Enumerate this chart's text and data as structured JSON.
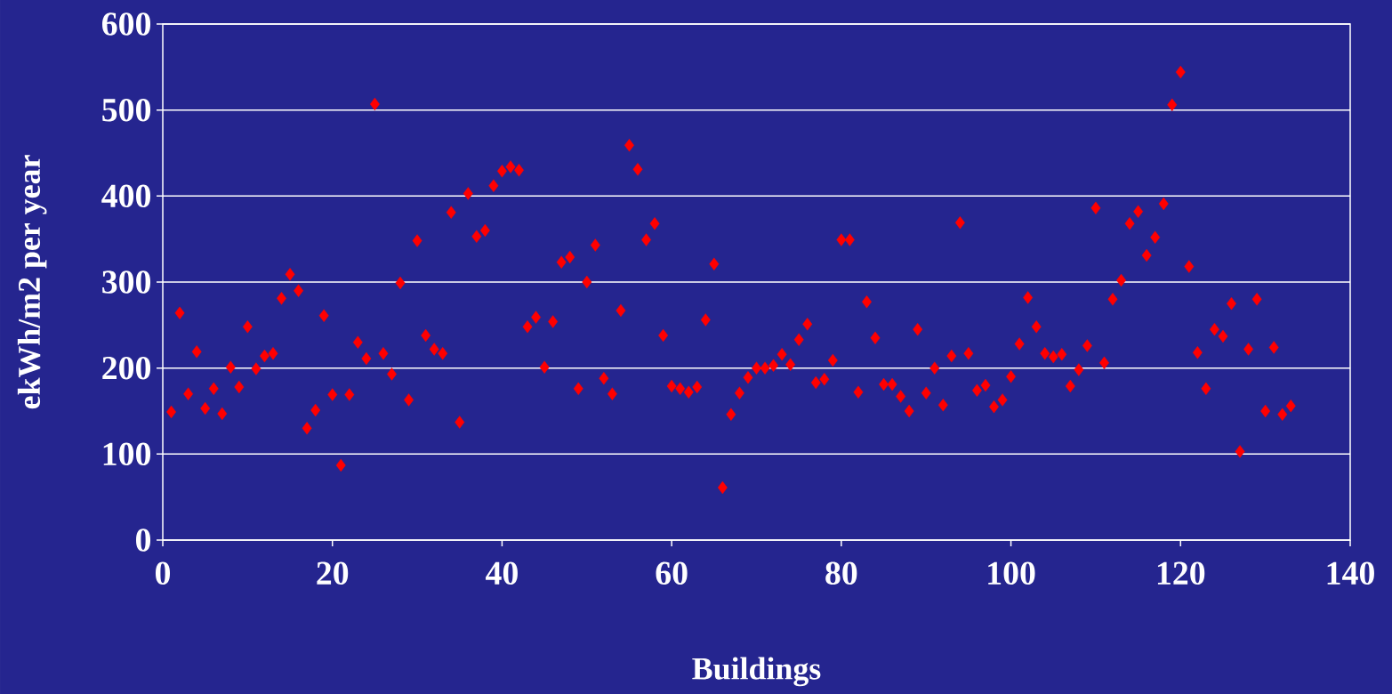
{
  "chart_data": {
    "type": "scatter",
    "xlabel": "Buildings",
    "ylabel": "ekWh/m2 per year",
    "x": [
      1,
      2,
      3,
      4,
      5,
      6,
      7,
      8,
      9,
      10,
      11,
      12,
      13,
      14,
      15,
      16,
      17,
      18,
      19,
      20,
      21,
      22,
      23,
      24,
      25,
      26,
      27,
      28,
      29,
      30,
      31,
      32,
      33,
      34,
      35,
      36,
      37,
      38,
      39,
      40,
      41,
      42,
      43,
      44,
      45,
      46,
      47,
      48,
      49,
      50,
      51,
      52,
      53,
      54,
      55,
      56,
      57,
      58,
      59,
      60,
      61,
      62,
      63,
      64,
      65,
      66,
      67,
      68,
      69,
      70,
      71,
      72,
      73,
      74,
      75,
      76,
      77,
      78,
      79,
      80,
      81,
      82,
      83,
      84,
      85,
      86,
      87,
      88,
      89,
      90,
      91,
      92,
      93,
      94,
      95,
      96,
      97,
      98,
      99,
      100,
      101,
      102,
      103,
      104,
      105,
      106,
      107,
      108,
      109,
      110,
      111,
      112,
      113,
      114,
      115,
      116,
      117,
      118,
      119,
      120,
      121,
      122,
      123,
      124,
      125,
      126,
      127,
      128,
      129,
      130,
      131,
      132,
      133
    ],
    "values": [
      149,
      264,
      170,
      219,
      153,
      176,
      147,
      201,
      178,
      248,
      199,
      214,
      217,
      281,
      309,
      290,
      130,
      151,
      261,
      169,
      87,
      169,
      230,
      211,
      507,
      217,
      193,
      299,
      163,
      348,
      238,
      222,
      217,
      381,
      137,
      403,
      353,
      360,
      412,
      429,
      434,
      430,
      248,
      259,
      201,
      254,
      323,
      329,
      176,
      300,
      343,
      188,
      170,
      267,
      459,
      431,
      349,
      368,
      238,
      179,
      176,
      172,
      178,
      256,
      321,
      61,
      146,
      171,
      189,
      200,
      200,
      203,
      216,
      204,
      233,
      251,
      183,
      187,
      209,
      349,
      349,
      172,
      277,
      235,
      181,
      181,
      167,
      150,
      245,
      171,
      200,
      157,
      214,
      369,
      217,
      174,
      180,
      155,
      163,
      190,
      228,
      282,
      248,
      217,
      213,
      216,
      179,
      198,
      226,
      386,
      206,
      280,
      302,
      368,
      382,
      331,
      352,
      391,
      506,
      544,
      318,
      218,
      176,
      245,
      237,
      275,
      103,
      222,
      280,
      150,
      224,
      146,
      156
    ],
    "color": "#ff0000",
    "marker": "diamond",
    "grid": "y",
    "xlim": [
      0,
      140
    ],
    "xticks": [
      0,
      20,
      40,
      60,
      80,
      100,
      120,
      140
    ],
    "ylim": [
      0,
      600
    ],
    "yticks": [
      0,
      100,
      200,
      300,
      400,
      500,
      600
    ]
  }
}
